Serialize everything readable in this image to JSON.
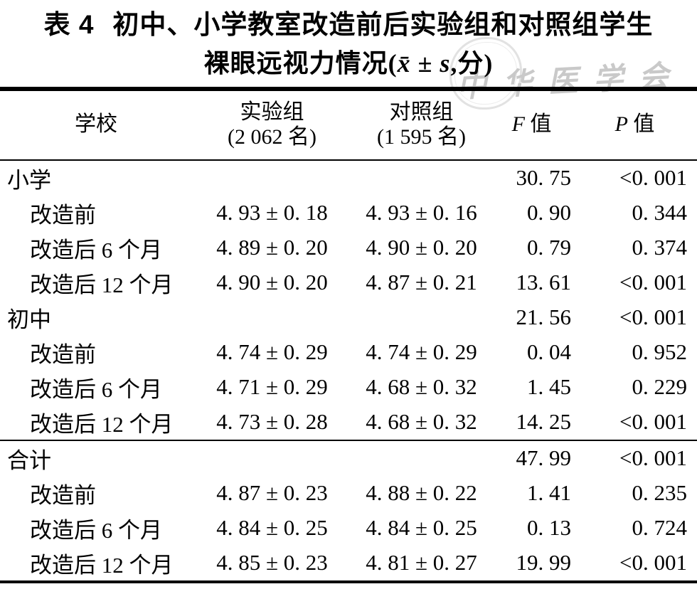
{
  "title": {
    "tag": "表 4",
    "line1": "初中、小学教室改造前后实验组和对照组学生",
    "line2_prefix": "裸眼远视力情况(",
    "line2_xbar": "x̄",
    "line2_mid": " ± ",
    "line2_s": "s",
    "line2_suffix": ",分)"
  },
  "watermark": {
    "text": "中华医学会"
  },
  "table": {
    "header": {
      "school": "学校",
      "exp_name": "实验组",
      "exp_n": "(2 062 名)",
      "ctrl_name": "对照组",
      "ctrl_n": "(1 595 名)",
      "f_letter": "F",
      "f_rest": " 值",
      "p_letter": "P",
      "p_rest": " 值"
    },
    "rows": [
      {
        "label": "小学",
        "indent": false,
        "rule_above": false,
        "exp": "",
        "ctrl": "",
        "f": "30. 75",
        "p": "<0. 001"
      },
      {
        "label": "改造前",
        "indent": true,
        "rule_above": false,
        "exp": "4. 93 ± 0. 18",
        "ctrl": "4. 93 ± 0. 16",
        "f": "0. 90",
        "p": "0. 344"
      },
      {
        "label": "改造后 6 个月",
        "indent": true,
        "rule_above": false,
        "exp": "4. 89 ± 0. 20",
        "ctrl": "4. 90 ± 0. 20",
        "f": "0. 79",
        "p": "0. 374"
      },
      {
        "label": "改造后 12 个月",
        "indent": true,
        "rule_above": false,
        "exp": "4. 90 ± 0. 20",
        "ctrl": "4. 87 ± 0. 21",
        "f": "13. 61",
        "p": "<0. 001"
      },
      {
        "label": "初中",
        "indent": false,
        "rule_above": false,
        "exp": "",
        "ctrl": "",
        "f": "21. 56",
        "p": "<0. 001"
      },
      {
        "label": "改造前",
        "indent": true,
        "rule_above": false,
        "exp": "4. 74 ± 0. 29",
        "ctrl": "4. 74 ± 0. 29",
        "f": "0. 04",
        "p": "0. 952"
      },
      {
        "label": "改造后 6 个月",
        "indent": true,
        "rule_above": false,
        "exp": "4. 71 ± 0. 29",
        "ctrl": "4. 68 ± 0. 32",
        "f": "1. 45",
        "p": "0. 229"
      },
      {
        "label": "改造后 12 个月",
        "indent": true,
        "rule_above": false,
        "exp": "4. 73 ± 0. 28",
        "ctrl": "4. 68 ± 0. 32",
        "f": "14. 25",
        "p": "<0. 001"
      },
      {
        "label": "合计",
        "indent": false,
        "rule_above": true,
        "exp": "",
        "ctrl": "",
        "f": "47. 99",
        "p": "<0. 001"
      },
      {
        "label": "改造前",
        "indent": true,
        "rule_above": false,
        "exp": "4. 87 ± 0. 23",
        "ctrl": "4. 88 ± 0. 22",
        "f": "1. 41",
        "p": "0. 235"
      },
      {
        "label": "改造后 6 个月",
        "indent": true,
        "rule_above": false,
        "exp": "4. 84 ± 0. 25",
        "ctrl": "4. 84 ± 0. 25",
        "f": "0. 13",
        "p": "0. 724"
      },
      {
        "label": "改造后 12 个月",
        "indent": true,
        "rule_above": false,
        "exp": "4. 85 ± 0. 23",
        "ctrl": "4. 81 ± 0. 27",
        "f": "19. 99",
        "p": "<0. 001"
      }
    ]
  }
}
